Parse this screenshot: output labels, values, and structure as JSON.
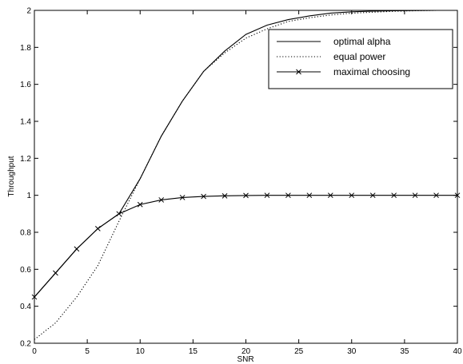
{
  "chart_data": {
    "type": "line",
    "title": "",
    "xlabel": "SNR",
    "ylabel": "Throughput",
    "xlim": [
      0,
      40
    ],
    "ylim": [
      0.2,
      2
    ],
    "xticks": [
      0,
      5,
      10,
      15,
      20,
      25,
      30,
      35,
      40
    ],
    "yticks": [
      0.2,
      0.4,
      0.6,
      0.8,
      1,
      1.2,
      1.4,
      1.6,
      1.8,
      2
    ],
    "grid": false,
    "legend_position": "top-right",
    "series": [
      {
        "name": "optimal alpha",
        "style": "solid",
        "marker": "none",
        "color": "#000000",
        "x": [
          0,
          2,
          4,
          6,
          8,
          10,
          12,
          14,
          16,
          18,
          20,
          22,
          24,
          26,
          28,
          30,
          32,
          34,
          36,
          38,
          40
        ],
        "y": [
          0.45,
          0.58,
          0.71,
          0.82,
          0.9,
          1.09,
          1.32,
          1.51,
          1.67,
          1.78,
          1.87,
          1.92,
          1.95,
          1.97,
          1.985,
          1.992,
          1.996,
          1.998,
          1.999,
          2.0,
          2.0
        ]
      },
      {
        "name": "equal power",
        "style": "dotted",
        "marker": "none",
        "color": "#000000",
        "x": [
          0,
          2,
          4,
          6,
          8,
          10,
          12,
          14,
          16,
          18,
          20,
          22,
          24,
          26,
          28,
          30,
          32,
          34,
          36,
          38,
          40
        ],
        "y": [
          0.22,
          0.31,
          0.45,
          0.62,
          0.86,
          1.09,
          1.32,
          1.51,
          1.67,
          1.77,
          1.85,
          1.9,
          1.94,
          1.96,
          1.975,
          1.985,
          1.99,
          1.995,
          1.998,
          2.0,
          2.0
        ]
      },
      {
        "name": "maximal choosing",
        "style": "solid",
        "marker": "x",
        "color": "#000000",
        "x": [
          0,
          2,
          4,
          6,
          8,
          10,
          12,
          14,
          16,
          18,
          20,
          22,
          24,
          26,
          28,
          30,
          32,
          34,
          36,
          38,
          40
        ],
        "y": [
          0.45,
          0.58,
          0.71,
          0.82,
          0.9,
          0.95,
          0.975,
          0.988,
          0.994,
          0.997,
          0.999,
          1.0,
          1.0,
          1.0,
          1.0,
          1.0,
          1.0,
          1.0,
          1.0,
          1.0,
          1.0
        ]
      }
    ]
  }
}
